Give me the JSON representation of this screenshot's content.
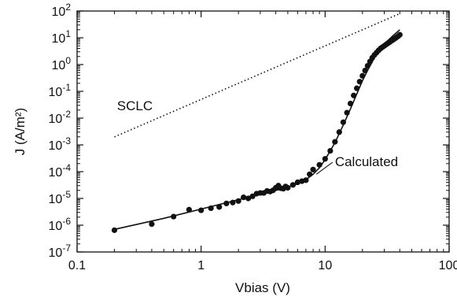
{
  "chart_data": {
    "type": "scatter",
    "title": "",
    "xlabel": "Vbias (V)",
    "ylabel": "J (A/m²)",
    "xscale": "log",
    "yscale": "log",
    "xlim": [
      0.1,
      100
    ],
    "ylim": [
      1e-07,
      100
    ],
    "x_ticks": [
      {
        "value": 0.1,
        "label": "0.1"
      },
      {
        "value": 1,
        "label": "1"
      },
      {
        "value": 10,
        "label": "10"
      },
      {
        "value": 100,
        "label": "100"
      }
    ],
    "y_ticks": [
      {
        "value": 1e-07,
        "mant": "10",
        "exp": "-7"
      },
      {
        "value": 1e-06,
        "mant": "10",
        "exp": "-6"
      },
      {
        "value": 1e-05,
        "mant": "10",
        "exp": "-5"
      },
      {
        "value": 0.0001,
        "mant": "10",
        "exp": "-4"
      },
      {
        "value": 0.001,
        "mant": "10",
        "exp": "-3"
      },
      {
        "value": 0.01,
        "mant": "10",
        "exp": "-2"
      },
      {
        "value": 0.1,
        "mant": "10",
        "exp": "-1"
      },
      {
        "value": 1,
        "mant": "10",
        "exp": "0"
      },
      {
        "value": 10,
        "mant": "10",
        "exp": "1"
      },
      {
        "value": 100,
        "mant": "10",
        "exp": "2"
      }
    ],
    "grid": false,
    "series": [
      {
        "kind": "points",
        "x": [
          0.2,
          0.4,
          0.6,
          0.8,
          1.0,
          1.2,
          1.4,
          1.6,
          1.8,
          2.0,
          2.2,
          2.4,
          2.6,
          2.8,
          3.0,
          3.2,
          3.4,
          3.6,
          3.8,
          4.0,
          4.2,
          4.4,
          4.6,
          4.8,
          5.0,
          5.5,
          6.0,
          6.5,
          7.0,
          7.5,
          8.0,
          9.0,
          10.0,
          11.0,
          12.0,
          13.0,
          14.0,
          15.0,
          16.0,
          17.0,
          18.0,
          19.0,
          20.0,
          21.0,
          22.0,
          23.0,
          24.0,
          25.0,
          26.0,
          27.0,
          28.0,
          29.0,
          30.0,
          31.0,
          32.0,
          33.0,
          34.0,
          35.0,
          36.0,
          37.0,
          38.0,
          39.0,
          40.0
        ],
        "y": [
          6.5e-07,
          1.1e-06,
          2.1e-06,
          3.8e-06,
          3.6e-06,
          4.3e-06,
          4.8e-06,
          6.5e-06,
          7e-06,
          8e-06,
          1.1e-05,
          1e-05,
          1.2e-05,
          1.5e-05,
          1.6e-05,
          1.6e-05,
          1.9e-05,
          1.8e-05,
          2e-05,
          2.5e-05,
          3e-05,
          2.4e-05,
          2.3e-05,
          2.8e-05,
          2.5e-05,
          3.2e-05,
          4e-05,
          4.4e-05,
          4.8e-05,
          8e-05,
          0.00012,
          0.00018,
          0.0003,
          0.0006,
          0.0013,
          0.003,
          0.007,
          0.016,
          0.035,
          0.07,
          0.13,
          0.23,
          0.38,
          0.6,
          0.9,
          1.3,
          1.8,
          2.3,
          2.8,
          3.4,
          4.0,
          4.5,
          5.0,
          5.6,
          6.2,
          6.8,
          7.5,
          8.2,
          9.0,
          9.8,
          10.7,
          11.7,
          13.0
        ]
      },
      {
        "name": "Calculated",
        "kind": "solid-line",
        "x": [
          0.2,
          0.5,
          1.0,
          2.0,
          3.0,
          4.0,
          5.0,
          6.0,
          7.0,
          8.0,
          9.0,
          10.0,
          12.0,
          14.0,
          16.0,
          18.0,
          20.0,
          22.0,
          25.0,
          28.0,
          30.0,
          33.0,
          36.0,
          40.0
        ],
        "y": [
          7e-07,
          1.8e-06,
          4e-06,
          9e-06,
          1.5e-05,
          2e-05,
          2.6e-05,
          3.5e-05,
          5e-05,
          8e-05,
          0.00014,
          0.00028,
          0.0012,
          0.0055,
          0.022,
          0.08,
          0.25,
          0.6,
          1.8,
          4.0,
          6.0,
          9.0,
          13.0,
          20.0
        ]
      },
      {
        "name": "SCLC",
        "kind": "dotted-line",
        "x": [
          0.2,
          40.0
        ],
        "y": [
          0.002,
          80.0
        ]
      }
    ],
    "annotations": [
      {
        "text": "SCLC",
        "x": 0.21,
        "y": 0.02
      },
      {
        "text": "Calculated",
        "x": 12.0,
        "y": 0.00016,
        "arrow_to_x": 8.5,
        "arrow_to_y": 8e-05
      }
    ]
  }
}
